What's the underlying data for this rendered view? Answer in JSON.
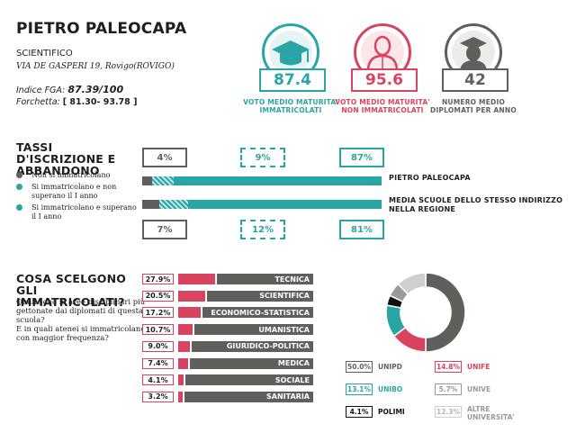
{
  "header": {
    "school_name": "PIETRO PALEOCAPA",
    "school_type": "SCIENTIFICO",
    "address": "VIA DE GASPERI 19, Rovigo(ROVIGO)",
    "fga_label": "Indice FGA:",
    "fga_value": "87.39/100",
    "forchetta_label": "Forchetta:",
    "forchetta_value": "[ 81.30- 93.78 ]"
  },
  "kpis": [
    {
      "value": "87.4",
      "label": "VOTO MEDIO MATURITA' IMMATRICOLATI",
      "color": "#2aa5a5",
      "icon": "graduation-cap-icon"
    },
    {
      "value": "95.6",
      "label": "VOTO MEDIO MATURITA' NON IMMATRICOLATI",
      "color": "#d8445f",
      "icon": "person-icon"
    },
    {
      "value": "42",
      "label": "NUMERO MEDIO DIPLOMATI PER ANNO",
      "color": "#5f5f5b",
      "icon": "graduate-person-icon"
    }
  ],
  "iscrizione": {
    "title": "TASSI D'ISCRIZIONE E ABBANDONO",
    "legend": [
      {
        "text": "Non si immatricolano",
        "color": "#5f5f5b"
      },
      {
        "text": "Si immatricolano e non superano il I anno",
        "color": "#2aa5a5"
      },
      {
        "text": "Si immatricolano e superano il I anno",
        "color": "#2aa5a5"
      }
    ],
    "rows": [
      {
        "label": "PIETRO PALEOCAPA",
        "values": [
          4,
          9,
          87
        ],
        "labels": [
          "4%",
          "9%",
          "87%"
        ]
      },
      {
        "label": "MEDIA SCUOLE DELLO STESSO INDIRIZZO NELLA REGIONE",
        "values": [
          7,
          12,
          81
        ],
        "labels": [
          "7%",
          "12%",
          "81%"
        ]
      }
    ]
  },
  "scelte": {
    "title": "COSA SCELGONO GLI IMMATRICOLATI?",
    "question1": "Quali sono le aree disciplinari più gettonate dai diplomati di questa scuola?",
    "question2": "E in quali atenei si immatricolano con maggior frequenza?",
    "areas": [
      {
        "name": "TECNICA",
        "value": 27.9,
        "label": "27.9%"
      },
      {
        "name": "SCIENTIFICA",
        "value": 20.5,
        "label": "20.5%"
      },
      {
        "name": "ECONOMICO-STATISTICA",
        "value": 17.2,
        "label": "17.2%"
      },
      {
        "name": "UMANISTICA",
        "value": 10.7,
        "label": "10.7%"
      },
      {
        "name": "GIURIDICO-POLITICA",
        "value": 9.0,
        "label": "9.0%"
      },
      {
        "name": "MEDICA",
        "value": 7.4,
        "label": "7.4%"
      },
      {
        "name": "SOCIALE",
        "value": 4.1,
        "label": "4.1%"
      },
      {
        "name": "SANITARIA",
        "value": 3.2,
        "label": "3.2%"
      }
    ],
    "universities": [
      {
        "name": "UNIPD",
        "value": 50.0,
        "label": "50.0%",
        "color": "#5f5f5b"
      },
      {
        "name": "UNIFE",
        "value": 14.8,
        "label": "14.8%",
        "color": "#d8445f"
      },
      {
        "name": "UNIBO",
        "value": 13.1,
        "label": "13.1%",
        "color": "#2aa5a5"
      },
      {
        "name": "UNIVE",
        "value": 5.7,
        "label": "5.7%",
        "color": "#9a9a9a"
      },
      {
        "name": "POLIMI",
        "value": 4.1,
        "label": "4.1%",
        "color": "#111111"
      },
      {
        "name": "ALTRE UNIVERSITA'",
        "value": 12.3,
        "label": "12.3%",
        "color": "#cfcfcf"
      }
    ]
  },
  "colors": {
    "teal": "#2aa5a5",
    "red": "#d8445f",
    "gray": "#5f5f5b"
  }
}
